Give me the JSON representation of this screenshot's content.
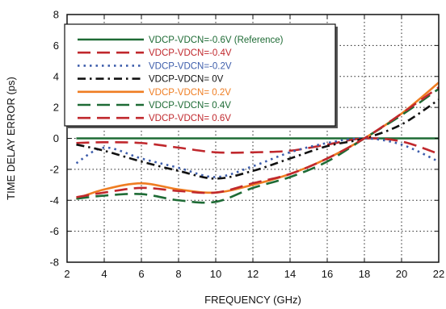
{
  "chart_data": {
    "type": "line",
    "xlabel": "FREQUENCY (GHz)",
    "ylabel": "TIME DELAY ERROR (ps)",
    "xlim": [
      2,
      22
    ],
    "ylim": [
      -8,
      8
    ],
    "x_ticks": [
      2,
      4,
      6,
      8,
      10,
      12,
      14,
      16,
      18,
      20,
      22
    ],
    "y_ticks": [
      8,
      6,
      4,
      2,
      0,
      -2,
      -4,
      -6,
      -8
    ],
    "grid": true,
    "legend_position": "top-left",
    "series": [
      {
        "name": "VDCP-VDCN=-0.6V (Reference)",
        "color": "#1e6b35",
        "dash": "solid",
        "x": [
          2.5,
          22
        ],
        "y": [
          0,
          0
        ]
      },
      {
        "name": "VDCP-VDCN=-0.4V",
        "color": "#c0282d",
        "dash": "long-dash",
        "x": [
          2.5,
          4,
          6,
          8,
          10,
          12,
          14,
          16,
          18,
          20,
          22
        ],
        "y": [
          -0.3,
          -0.25,
          -0.3,
          -0.6,
          -0.9,
          -0.9,
          -0.8,
          -0.4,
          0.0,
          -0.2,
          -1.0
        ]
      },
      {
        "name": "VDCP-VDCN=-0.2V",
        "color": "#3d5dab",
        "dash": "dot",
        "x": [
          2.5,
          4,
          6,
          8,
          10,
          12,
          14,
          16,
          18,
          20,
          22
        ],
        "y": [
          -1.6,
          -0.6,
          -1.3,
          -1.9,
          -2.5,
          -1.8,
          -0.9,
          -0.3,
          0.0,
          -0.4,
          -1.5
        ]
      },
      {
        "name": "VDCP-VDCN= 0V",
        "color": "#111111",
        "dash": "dash-dot",
        "x": [
          2.5,
          4,
          6,
          8,
          10,
          12,
          14,
          16,
          18,
          20,
          22
        ],
        "y": [
          -0.4,
          -0.8,
          -1.5,
          -2.1,
          -2.6,
          -2.1,
          -1.3,
          -0.5,
          0.0,
          0.9,
          2.5
        ]
      },
      {
        "name": "VDCP-VDCN= 0.2V",
        "color": "#ef7d22",
        "dash": "solid",
        "x": [
          2.5,
          4,
          6,
          8,
          10,
          12,
          14,
          16,
          18,
          20,
          22
        ],
        "y": [
          -3.9,
          -3.3,
          -2.9,
          -3.3,
          -3.5,
          -3.0,
          -2.3,
          -1.3,
          0.0,
          1.6,
          3.6
        ]
      },
      {
        "name": "VDCP-VDCN= 0.4V",
        "color": "#1e6b35",
        "dash": "long-dash",
        "x": [
          2.5,
          4,
          6,
          8,
          10,
          12,
          14,
          16,
          18,
          20,
          22
        ],
        "y": [
          -3.9,
          -3.7,
          -3.6,
          -4.0,
          -4.1,
          -3.2,
          -2.5,
          -1.5,
          0.0,
          1.5,
          3.2
        ]
      },
      {
        "name": "VDCP-VDCN= 0.6V",
        "color": "#c0282d",
        "dash": "long-dash",
        "x": [
          2.5,
          4,
          6,
          8,
          10,
          12,
          14,
          16,
          18,
          20,
          22
        ],
        "y": [
          -3.8,
          -3.5,
          -3.2,
          -3.4,
          -3.5,
          -2.9,
          -2.3,
          -1.3,
          0.0,
          1.6,
          3.3
        ]
      }
    ]
  }
}
